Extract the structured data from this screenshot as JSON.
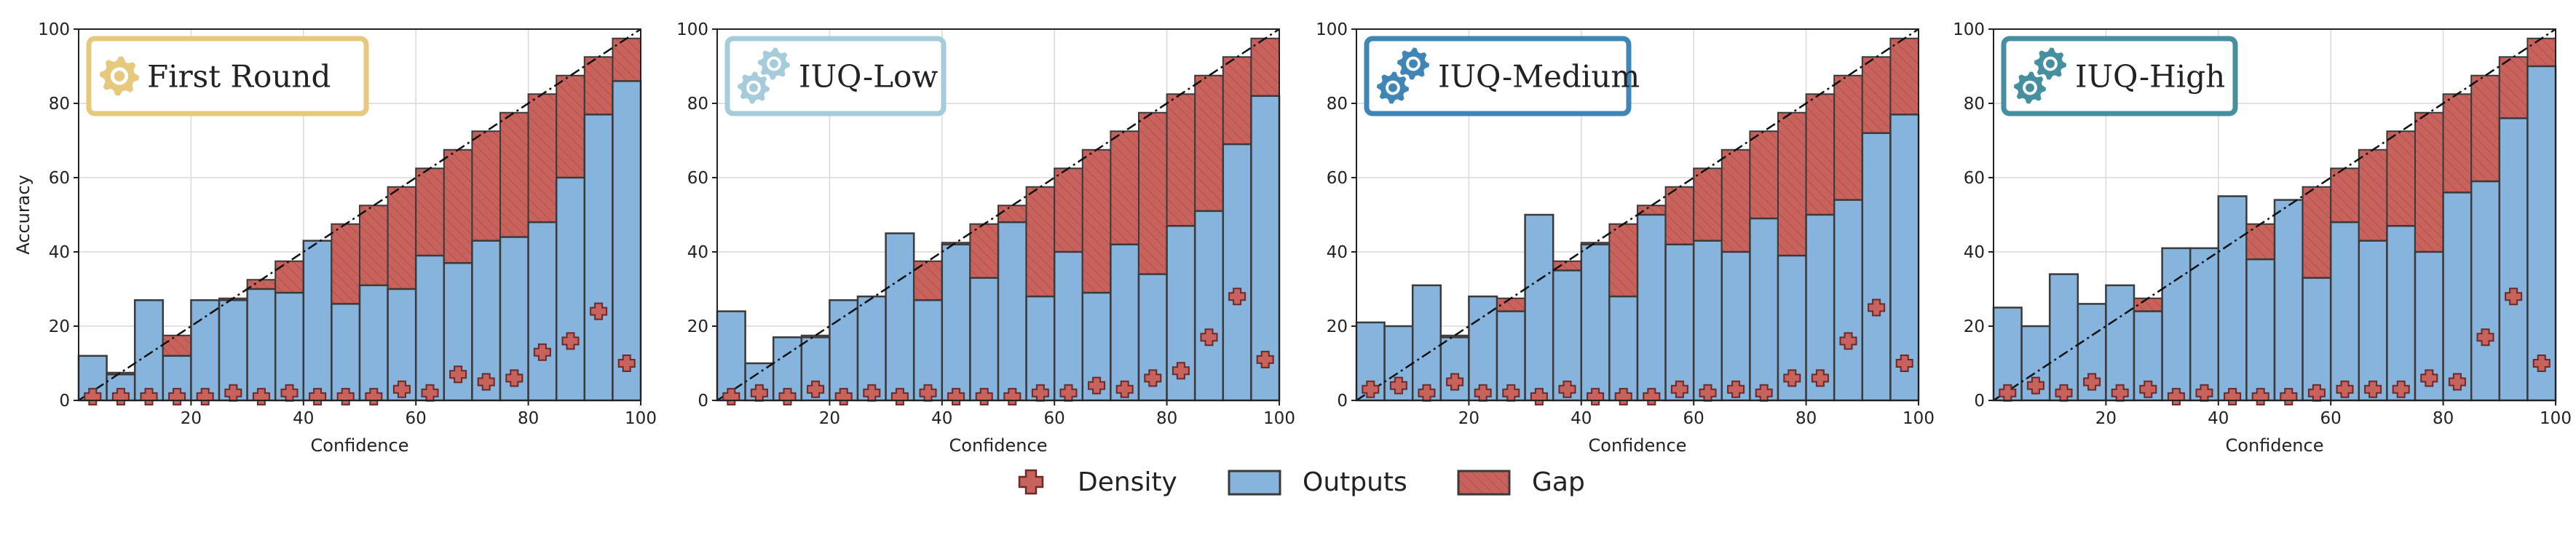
{
  "figure": {
    "legend": {
      "density": "Density",
      "outputs": "Outputs",
      "gap": "Gap"
    },
    "colors": {
      "outputs": "#86b4dd",
      "gap": "#c8625c",
      "bar_edge": "#3a3a3a",
      "density": "#c8625c",
      "diagonal": "#111111",
      "grid": "#d9d9d9"
    }
  },
  "chart_data": [
    {
      "type": "bar",
      "title": "First Round",
      "title_box_color": "#e7c97e",
      "gear_color": "#e7c97e",
      "gear_count": 1,
      "xlabel": "Confidence",
      "ylabel": "Accuracy",
      "xlim": [
        0,
        100
      ],
      "ylim": [
        0,
        100
      ],
      "xticks": [
        "20",
        "40",
        "60",
        "80",
        "100"
      ],
      "yticks": [
        "0",
        "20",
        "40",
        "60",
        "80",
        "100"
      ],
      "grid": true,
      "bin_width": 5,
      "outputs": [
        12,
        7,
        27,
        12,
        27,
        27,
        30,
        29,
        43,
        26,
        31,
        30,
        39,
        37,
        43,
        44,
        48,
        60,
        77,
        86
      ],
      "density": [
        1,
        1,
        1,
        1,
        1,
        2,
        1,
        2,
        1,
        1,
        1,
        3,
        2,
        7,
        5,
        6,
        13,
        16,
        24,
        10
      ]
    },
    {
      "type": "bar",
      "title": "IUQ-Low",
      "title_box_color": "#a6ccdc",
      "gear_color": "#a6ccdc",
      "gear_count": 2,
      "xlabel": "Confidence",
      "ylabel": "",
      "xlim": [
        0,
        100
      ],
      "ylim": [
        0,
        100
      ],
      "xticks": [
        "20",
        "40",
        "60",
        "80",
        "100"
      ],
      "yticks": [
        "0",
        "20",
        "40",
        "60",
        "80",
        "100"
      ],
      "grid": true,
      "bin_width": 5,
      "outputs": [
        24,
        10,
        17,
        17,
        27,
        28,
        45,
        27,
        42,
        33,
        48,
        28,
        40,
        29,
        42,
        34,
        47,
        51,
        69,
        82
      ],
      "density": [
        1,
        2,
        1,
        3,
        1,
        2,
        1,
        2,
        1,
        1,
        1,
        2,
        2,
        4,
        3,
        6,
        8,
        17,
        28,
        11
      ]
    },
    {
      "type": "bar",
      "title": "IUQ-Medium",
      "title_box_color": "#3f86b6",
      "gear_color": "#3f86b6",
      "gear_count": 2,
      "xlabel": "Confidence",
      "ylabel": "",
      "xlim": [
        0,
        100
      ],
      "ylim": [
        0,
        100
      ],
      "xticks": [
        "20",
        "40",
        "60",
        "80",
        "100"
      ],
      "yticks": [
        "0",
        "20",
        "40",
        "60",
        "80",
        "100"
      ],
      "grid": true,
      "bin_width": 5,
      "outputs": [
        21,
        20,
        31,
        17,
        28,
        24,
        50,
        35,
        42,
        28,
        50,
        42,
        43,
        40,
        49,
        39,
        50,
        54,
        72,
        77
      ],
      "density": [
        3,
        4,
        2,
        5,
        2,
        2,
        1,
        3,
        1,
        1,
        1,
        3,
        2,
        3,
        2,
        6,
        6,
        16,
        25,
        10
      ]
    },
    {
      "type": "bar",
      "title": "IUQ-High",
      "title_box_color": "#458fa0",
      "gear_color": "#458fa0",
      "gear_count": 2,
      "xlabel": "Confidence",
      "ylabel": "",
      "xlim": [
        0,
        100
      ],
      "ylim": [
        0,
        100
      ],
      "xticks": [
        "20",
        "40",
        "60",
        "80",
        "100"
      ],
      "yticks": [
        "0",
        "20",
        "40",
        "60",
        "80",
        "100"
      ],
      "grid": true,
      "bin_width": 5,
      "outputs": [
        25,
        20,
        34,
        26,
        31,
        24,
        41,
        41,
        55,
        38,
        54,
        33,
        48,
        43,
        47,
        40,
        56,
        59,
        76,
        90
      ],
      "density": [
        2,
        4,
        2,
        5,
        2,
        3,
        1,
        2,
        1,
        1,
        1,
        2,
        3,
        3,
        3,
        6,
        5,
        17,
        28,
        10
      ]
    }
  ]
}
